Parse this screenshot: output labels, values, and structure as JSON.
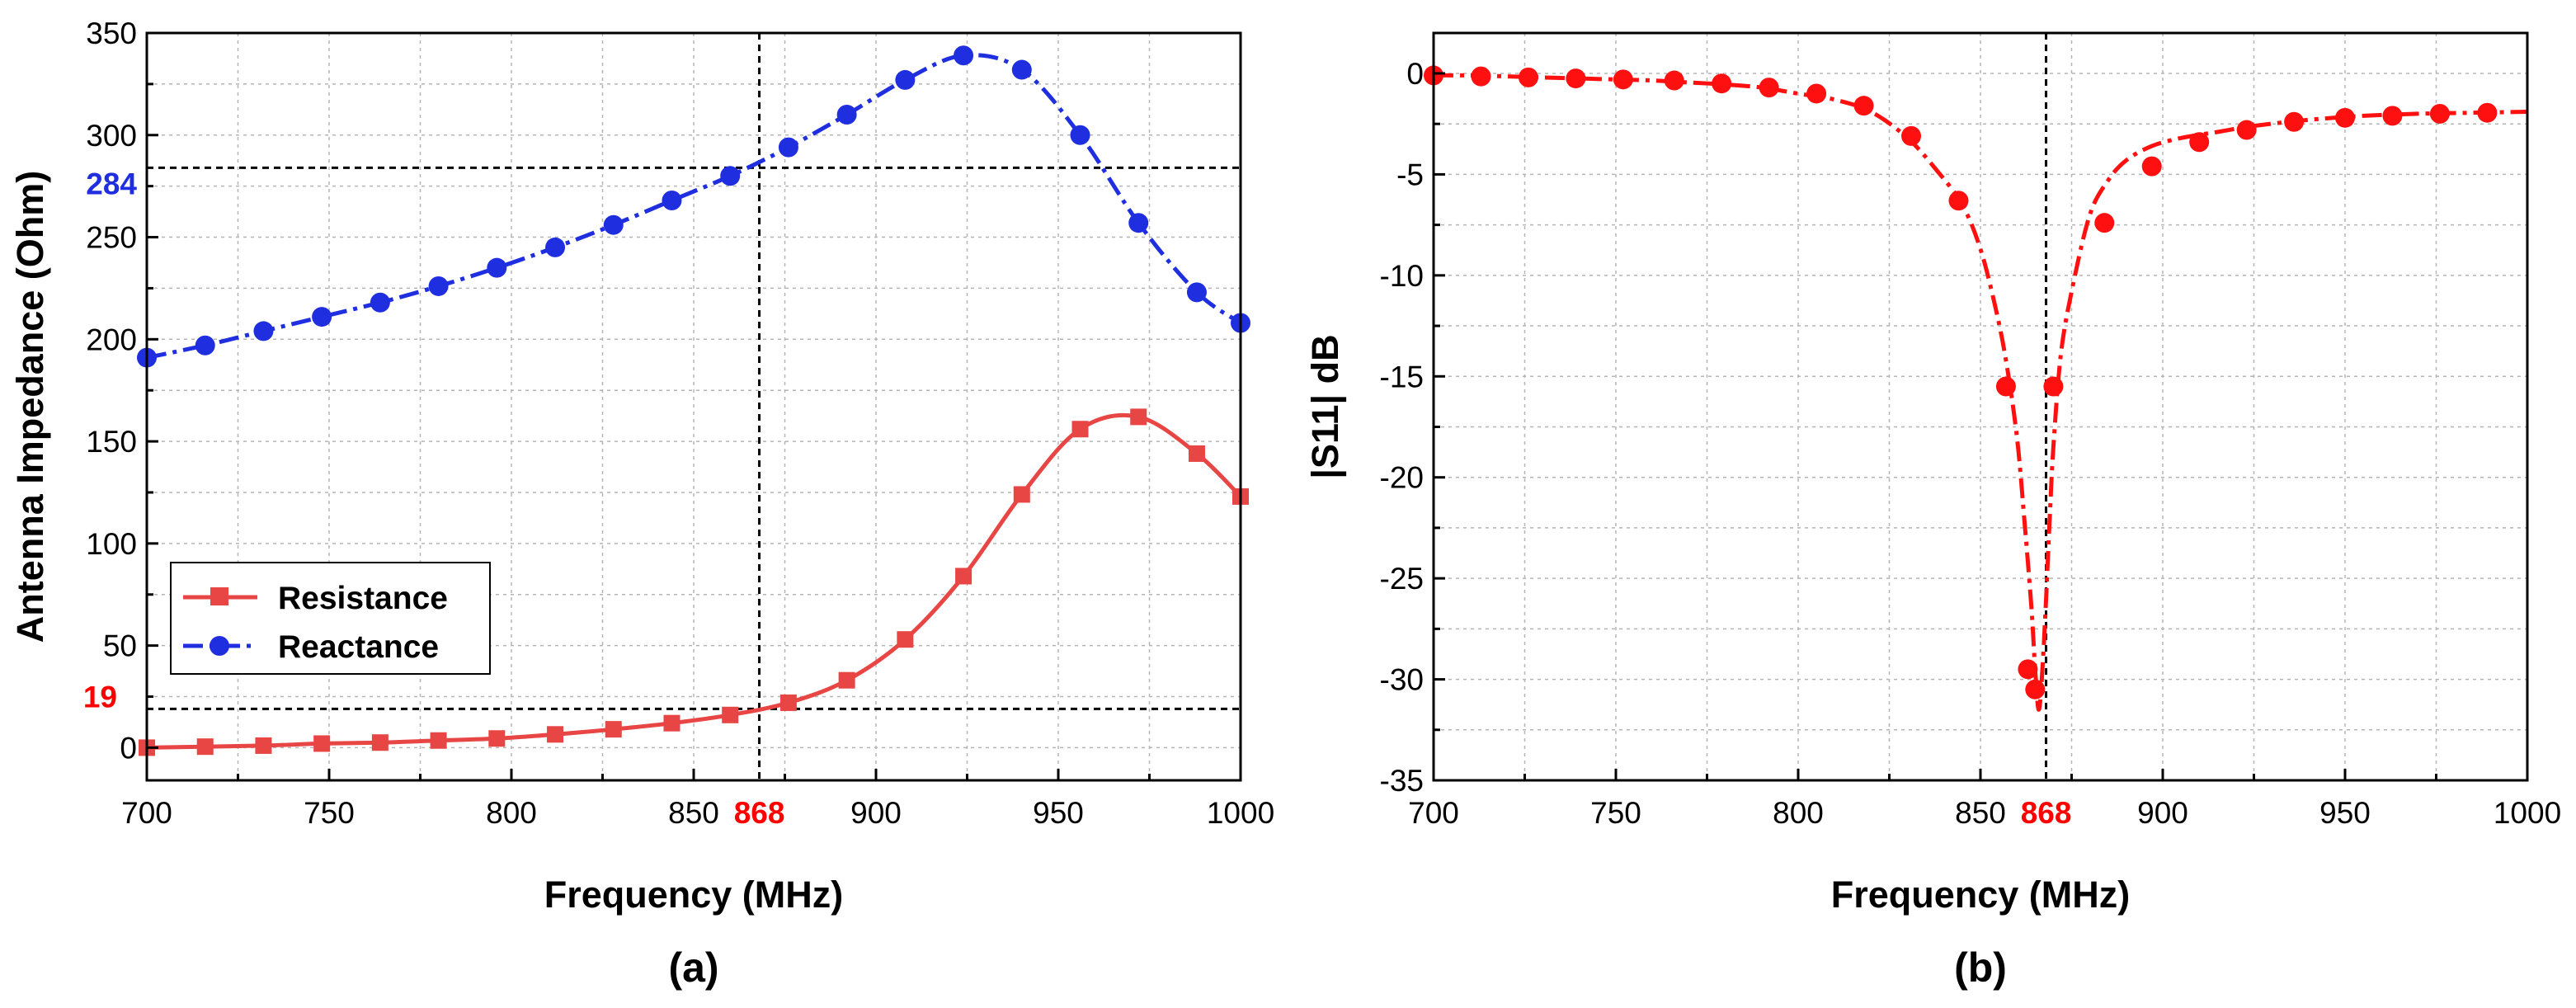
{
  "colors": {
    "resistance": "#e84545",
    "reactance": "#1f2fe0",
    "s11": "#ff1010",
    "highlight_red": "#ff0000",
    "highlight_blue": "#1f2fe0"
  },
  "chart_data": [
    {
      "type": "line",
      "panel_label": "(a)",
      "title": "",
      "xlabel": "Frequency (MHz)",
      "ylabel": "Antenna Impedance (Ohm)",
      "xlim": [
        700,
        1000
      ],
      "ylim": [
        -16,
        350
      ],
      "x_ticks": [
        "700",
        "750",
        "800",
        "850",
        "900",
        "950",
        "1000"
      ],
      "y_ticks": [
        "0",
        "50",
        "100",
        "150",
        "200",
        "250",
        "300",
        "350"
      ],
      "grid": true,
      "legend_position": "bottom-left",
      "markers": {
        "x": {
          "value": 868,
          "label": "868"
        },
        "y_low": {
          "value": 19,
          "label": "19"
        },
        "y_high": {
          "value": 284,
          "label": "284"
        }
      },
      "series": [
        {
          "name": "Resistance",
          "marker": "square",
          "line": "solid",
          "color_key": "resistance",
          "x": [
            700,
            716,
            732,
            748,
            764,
            780,
            796,
            812,
            828,
            844,
            860,
            876,
            892,
            908,
            924,
            940,
            956,
            972,
            988,
            1000
          ],
          "y": [
            0,
            0.5,
            1,
            2,
            2.5,
            3.5,
            4.5,
            6.5,
            9,
            12,
            16,
            22,
            33,
            53,
            84,
            124,
            156,
            162,
            144,
            123
          ]
        },
        {
          "name": "Reactance",
          "marker": "circle",
          "line": "dash-dot",
          "color_key": "reactance",
          "x": [
            700,
            716,
            732,
            748,
            764,
            780,
            796,
            812,
            828,
            844,
            860,
            876,
            892,
            908,
            924,
            940,
            956,
            972,
            988,
            1000
          ],
          "y": [
            191,
            197,
            204,
            211,
            218,
            226,
            235,
            245,
            256,
            268,
            280,
            294,
            310,
            327,
            339,
            332,
            300,
            257,
            223,
            208
          ]
        }
      ]
    },
    {
      "type": "line",
      "panel_label": "(b)",
      "title": "",
      "xlabel": "Frequency (MHz)",
      "ylabel": "|S11| dB",
      "xlim": [
        700,
        1000
      ],
      "ylim": [
        -35,
        2
      ],
      "x_ticks": [
        "700",
        "750",
        "800",
        "850",
        "900",
        "950",
        "1000"
      ],
      "y_ticks": [
        "0",
        "-5",
        "-10",
        "-15",
        "-20",
        "-25",
        "-30",
        "-35"
      ],
      "grid": true,
      "markers": {
        "x": {
          "value": 868,
          "label": "868"
        }
      },
      "series": [
        {
          "name": "|S11|",
          "marker": "circle",
          "line": "dash-dot",
          "color_key": "s11",
          "line_x": [
            700,
            710,
            720,
            730,
            740,
            750,
            760,
            770,
            780,
            790,
            800,
            810,
            820,
            830,
            838,
            845,
            850,
            854,
            857,
            860,
            862,
            864,
            865,
            866,
            867,
            868,
            869,
            870,
            872,
            875,
            880,
            885,
            890,
            897,
            905,
            915,
            925,
            940,
            955,
            970,
            985,
            1000
          ],
          "line_y": [
            -0.1,
            -0.1,
            -0.15,
            -0.2,
            -0.25,
            -0.3,
            -0.35,
            -0.45,
            -0.55,
            -0.7,
            -1.0,
            -1.3,
            -1.9,
            -3.2,
            -4.8,
            -6.5,
            -8.7,
            -11.5,
            -14.2,
            -18.0,
            -22.0,
            -26.5,
            -29.5,
            -31.5,
            -29.5,
            -26.0,
            -22.0,
            -18.5,
            -14.0,
            -10.8,
            -7.0,
            -5.3,
            -4.3,
            -3.6,
            -3.2,
            -2.9,
            -2.6,
            -2.3,
            -2.1,
            -2.0,
            -1.95,
            -1.9
          ],
          "x": [
            700,
            713,
            726,
            739,
            752,
            766,
            779,
            792,
            805,
            818,
            831,
            844,
            857,
            863,
            865,
            870,
            884,
            897,
            910,
            923,
            936,
            950,
            963,
            976,
            989
          ],
          "y": [
            -0.1,
            -0.15,
            -0.2,
            -0.25,
            -0.3,
            -0.35,
            -0.5,
            -0.7,
            -1.0,
            -1.6,
            -3.1,
            -6.3,
            -15.5,
            -29.5,
            -30.5,
            -15.5,
            -7.4,
            -4.6,
            -3.4,
            -2.8,
            -2.4,
            -2.2,
            -2.1,
            -2.0,
            -1.95
          ]
        }
      ]
    }
  ]
}
